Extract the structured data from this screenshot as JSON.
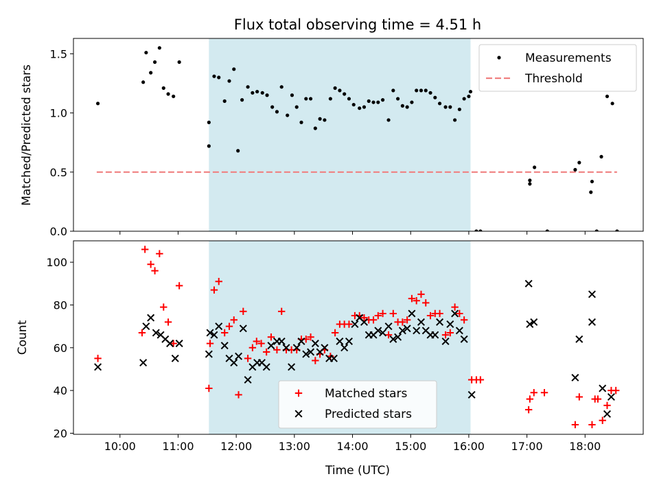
{
  "figure": {
    "title": "Flux total observing time = 4.51 h",
    "xlabel": "Time (UTC)"
  },
  "shade": {
    "start": 11.53,
    "end": 16.03,
    "color": "#d3eaf0"
  },
  "x_axis": {
    "xlim": [
      9.2,
      19.0
    ],
    "ticks": [
      10,
      11,
      12,
      13,
      14,
      15,
      16,
      17,
      18
    ],
    "tick_labels": [
      "10:00",
      "11:00",
      "12:00",
      "13:00",
      "14:00",
      "15:00",
      "16:00",
      "17:00",
      "18:00"
    ]
  },
  "chart_data": [
    {
      "type": "scatter",
      "ylabel": "Matched/Predicted stars",
      "ylim": [
        0,
        1.63
      ],
      "yticks": [
        0,
        0.5,
        1.0,
        1.5
      ],
      "ytick_labels": [
        "0.0",
        "0.5",
        "1.0",
        "1.5"
      ],
      "legend": {
        "position": "top-right",
        "entries": [
          "Measurements",
          "Threshold"
        ]
      },
      "threshold": {
        "name": "Threshold",
        "value": 0.5,
        "x_range": [
          9.6,
          18.55
        ],
        "color": "#f08080"
      },
      "series": [
        {
          "name": "Measurements",
          "color": "#000000",
          "points": [
            [
              9.62,
              1.08
            ],
            [
              10.4,
              1.26
            ],
            [
              10.45,
              1.51
            ],
            [
              10.53,
              1.34
            ],
            [
              10.6,
              1.43
            ],
            [
              10.68,
              1.55
            ],
            [
              10.75,
              1.21
            ],
            [
              10.83,
              1.16
            ],
            [
              10.92,
              1.14
            ],
            [
              11.02,
              1.43
            ],
            [
              11.53,
              0.72
            ],
            [
              11.53,
              0.92
            ],
            [
              11.62,
              1.31
            ],
            [
              11.7,
              1.3
            ],
            [
              11.8,
              1.1
            ],
            [
              11.88,
              1.27
            ],
            [
              11.96,
              1.37
            ],
            [
              12.03,
              0.68
            ],
            [
              12.1,
              1.11
            ],
            [
              12.2,
              1.22
            ],
            [
              12.28,
              1.17
            ],
            [
              12.36,
              1.18
            ],
            [
              12.45,
              1.17
            ],
            [
              12.53,
              1.15
            ],
            [
              12.62,
              1.05
            ],
            [
              12.7,
              1.01
            ],
            [
              12.78,
              1.22
            ],
            [
              12.88,
              0.98
            ],
            [
              12.96,
              1.15
            ],
            [
              13.04,
              1.05
            ],
            [
              13.12,
              0.92
            ],
            [
              13.2,
              1.12
            ],
            [
              13.28,
              1.12
            ],
            [
              13.36,
              0.87
            ],
            [
              13.44,
              0.95
            ],
            [
              13.52,
              0.94
            ],
            [
              13.62,
              1.12
            ],
            [
              13.7,
              1.21
            ],
            [
              13.78,
              1.19
            ],
            [
              13.86,
              1.16
            ],
            [
              13.94,
              1.12
            ],
            [
              14.02,
              1.07
            ],
            [
              14.12,
              1.04
            ],
            [
              14.2,
              1.05
            ],
            [
              14.28,
              1.1
            ],
            [
              14.36,
              1.09
            ],
            [
              14.44,
              1.09
            ],
            [
              14.52,
              1.11
            ],
            [
              14.62,
              0.94
            ],
            [
              14.7,
              1.19
            ],
            [
              14.78,
              1.12
            ],
            [
              14.86,
              1.06
            ],
            [
              14.94,
              1.05
            ],
            [
              15.02,
              1.09
            ],
            [
              15.1,
              1.19
            ],
            [
              15.18,
              1.19
            ],
            [
              15.26,
              1.19
            ],
            [
              15.34,
              1.17
            ],
            [
              15.42,
              1.13
            ],
            [
              15.5,
              1.08
            ],
            [
              15.6,
              1.05
            ],
            [
              15.68,
              1.05
            ],
            [
              15.76,
              0.94
            ],
            [
              15.84,
              1.03
            ],
            [
              15.92,
              1.12
            ],
            [
              16.0,
              1.14
            ],
            [
              16.03,
              1.18
            ],
            [
              16.13,
              0.0
            ],
            [
              16.2,
              0.0
            ],
            [
              17.05,
              0.43
            ],
            [
              17.05,
              0.4
            ],
            [
              17.13,
              0.54
            ],
            [
              17.35,
              0.0
            ],
            [
              17.83,
              0.52
            ],
            [
              17.9,
              0.58
            ],
            [
              18.1,
              0.33
            ],
            [
              18.12,
              0.42
            ],
            [
              18.2,
              0.0
            ],
            [
              18.28,
              0.63
            ],
            [
              18.38,
              1.14
            ],
            [
              18.47,
              1.08
            ],
            [
              18.55,
              0.0
            ]
          ]
        }
      ]
    },
    {
      "type": "scatter",
      "ylabel": "Count",
      "ylim": [
        19.5,
        110
      ],
      "yticks": [
        20,
        40,
        60,
        80,
        100
      ],
      "ytick_labels": [
        "20",
        "40",
        "60",
        "80",
        "100"
      ],
      "legend": {
        "position": "bottom-center",
        "entries": [
          "Matched stars",
          "Predicted stars"
        ]
      },
      "series": [
        {
          "name": "Matched stars",
          "marker": "plus",
          "color": "#ff0000",
          "points": [
            [
              9.62,
              55
            ],
            [
              10.38,
              67
            ],
            [
              10.43,
              106
            ],
            [
              10.53,
              99
            ],
            [
              10.6,
              96
            ],
            [
              10.68,
              104
            ],
            [
              10.75,
              79
            ],
            [
              10.83,
              72
            ],
            [
              10.92,
              62
            ],
            [
              11.02,
              89
            ],
            [
              11.53,
              41
            ],
            [
              11.55,
              62
            ],
            [
              11.62,
              87
            ],
            [
              11.7,
              91
            ],
            [
              11.8,
              67
            ],
            [
              11.88,
              70
            ],
            [
              11.96,
              73
            ],
            [
              12.04,
              38
            ],
            [
              12.12,
              77
            ],
            [
              12.2,
              55
            ],
            [
              12.28,
              60
            ],
            [
              12.35,
              63
            ],
            [
              12.43,
              62
            ],
            [
              12.52,
              58
            ],
            [
              12.6,
              65
            ],
            [
              12.7,
              59
            ],
            [
              12.78,
              77
            ],
            [
              12.86,
              59
            ],
            [
              12.95,
              59
            ],
            [
              13.04,
              59
            ],
            [
              13.12,
              64
            ],
            [
              13.2,
              64
            ],
            [
              13.28,
              65
            ],
            [
              13.36,
              54
            ],
            [
              13.44,
              57
            ],
            [
              13.52,
              59
            ],
            [
              13.62,
              56
            ],
            [
              13.7,
              67
            ],
            [
              13.78,
              71
            ],
            [
              13.86,
              71
            ],
            [
              13.94,
              71
            ],
            [
              14.04,
              75
            ],
            [
              14.12,
              75
            ],
            [
              14.2,
              74
            ],
            [
              14.28,
              73
            ],
            [
              14.36,
              73
            ],
            [
              14.44,
              75
            ],
            [
              14.52,
              76
            ],
            [
              14.62,
              66
            ],
            [
              14.7,
              76
            ],
            [
              14.78,
              72
            ],
            [
              14.86,
              72
            ],
            [
              14.94,
              73
            ],
            [
              15.02,
              83
            ],
            [
              15.1,
              82
            ],
            [
              15.18,
              85
            ],
            [
              15.26,
              81
            ],
            [
              15.34,
              75
            ],
            [
              15.42,
              76
            ],
            [
              15.5,
              76
            ],
            [
              15.6,
              66
            ],
            [
              15.68,
              67
            ],
            [
              15.76,
              79
            ],
            [
              15.84,
              76
            ],
            [
              15.92,
              73
            ],
            [
              16.05,
              45
            ],
            [
              16.13,
              45
            ],
            [
              16.2,
              45
            ],
            [
              17.03,
              31
            ],
            [
              17.05,
              36
            ],
            [
              17.12,
              39
            ],
            [
              17.3,
              39
            ],
            [
              17.83,
              24
            ],
            [
              17.9,
              37
            ],
            [
              18.12,
              24
            ],
            [
              18.17,
              36
            ],
            [
              18.22,
              36
            ],
            [
              18.3,
              26
            ],
            [
              18.38,
              33
            ],
            [
              18.45,
              40
            ],
            [
              18.53,
              40
            ]
          ]
        },
        {
          "name": "Predicted stars",
          "marker": "x",
          "color": "#000000",
          "points": [
            [
              9.62,
              51
            ],
            [
              10.4,
              53
            ],
            [
              10.45,
              70
            ],
            [
              10.53,
              74
            ],
            [
              10.62,
              67
            ],
            [
              10.7,
              66
            ],
            [
              10.78,
              64
            ],
            [
              10.86,
              62
            ],
            [
              10.95,
              55
            ],
            [
              11.02,
              62
            ],
            [
              11.53,
              57
            ],
            [
              11.55,
              67
            ],
            [
              11.62,
              66
            ],
            [
              11.7,
              70
            ],
            [
              11.8,
              61
            ],
            [
              11.88,
              55
            ],
            [
              11.96,
              53
            ],
            [
              12.04,
              56
            ],
            [
              12.12,
              69
            ],
            [
              12.2,
              45
            ],
            [
              12.28,
              51
            ],
            [
              12.36,
              53
            ],
            [
              12.44,
              53
            ],
            [
              12.52,
              51
            ],
            [
              12.6,
              61
            ],
            [
              12.7,
              63
            ],
            [
              12.78,
              63
            ],
            [
              12.86,
              60
            ],
            [
              12.95,
              51
            ],
            [
              13.04,
              60
            ],
            [
              13.12,
              63
            ],
            [
              13.2,
              57
            ],
            [
              13.28,
              58
            ],
            [
              13.36,
              62
            ],
            [
              13.44,
              58
            ],
            [
              13.52,
              60
            ],
            [
              13.6,
              55
            ],
            [
              13.68,
              55
            ],
            [
              13.78,
              63
            ],
            [
              13.86,
              60
            ],
            [
              13.94,
              63
            ],
            [
              14.04,
              71
            ],
            [
              14.12,
              74
            ],
            [
              14.2,
              72
            ],
            [
              14.28,
              66
            ],
            [
              14.36,
              66
            ],
            [
              14.44,
              68
            ],
            [
              14.52,
              67
            ],
            [
              14.62,
              70
            ],
            [
              14.7,
              64
            ],
            [
              14.78,
              65
            ],
            [
              14.86,
              68
            ],
            [
              14.94,
              69
            ],
            [
              15.02,
              76
            ],
            [
              15.1,
              68
            ],
            [
              15.18,
              72
            ],
            [
              15.26,
              68
            ],
            [
              15.34,
              66
            ],
            [
              15.42,
              66
            ],
            [
              15.5,
              72
            ],
            [
              15.6,
              63
            ],
            [
              15.68,
              71
            ],
            [
              15.76,
              76
            ],
            [
              15.84,
              68
            ],
            [
              15.92,
              64
            ],
            [
              16.05,
              38
            ],
            [
              17.03,
              90
            ],
            [
              17.05,
              71
            ],
            [
              17.12,
              72
            ],
            [
              17.83,
              46
            ],
            [
              17.9,
              64
            ],
            [
              18.12,
              85
            ],
            [
              18.12,
              72
            ],
            [
              18.3,
              41
            ],
            [
              18.38,
              29
            ],
            [
              18.45,
              37
            ]
          ]
        }
      ]
    }
  ]
}
